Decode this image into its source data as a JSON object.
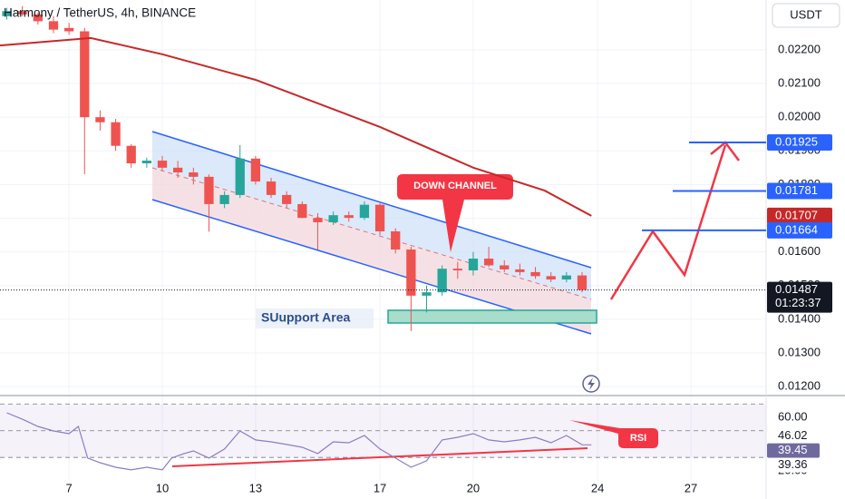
{
  "chart_data": [
    {
      "type": "candlestick",
      "title": "Harmony / TetherUS, 4h, BINANCE",
      "currency": "USDT",
      "up_color": "#26a69a",
      "down_color": "#ef5350",
      "x": [
        5.0,
        5.5,
        6.0,
        6.5,
        7.0,
        7.5,
        8.0,
        8.5,
        9.0,
        9.5,
        10.0,
        10.5,
        11.0,
        11.5,
        12.0,
        12.5,
        13.0,
        13.5,
        14.0,
        14.5,
        15.0,
        15.5,
        16.0,
        16.5,
        17.0,
        17.5,
        18.0,
        18.5,
        19.0,
        19.5,
        20.0,
        20.5,
        21.0,
        21.5,
        22.0,
        22.5,
        23.0,
        23.5
      ],
      "open": [
        0.023,
        0.02315,
        0.02305,
        0.02285,
        0.02265,
        0.02255,
        0.02,
        0.01985,
        0.01915,
        0.01863,
        0.01871,
        0.0185,
        0.01836,
        0.01823,
        0.01742,
        0.01769,
        0.01877,
        0.01809,
        0.01769,
        0.01742,
        0.01701,
        0.01688,
        0.01709,
        0.01701,
        0.0174,
        0.01661,
        0.01607,
        0.0147,
        0.0148,
        0.0155,
        0.01545,
        0.0158,
        0.0156,
        0.01548,
        0.0154,
        0.01528,
        0.01518,
        0.0153
      ],
      "high": [
        0.02325,
        0.0233,
        0.0231,
        0.023,
        0.0228,
        0.02265,
        0.0202,
        0.01995,
        0.0192,
        0.0188,
        0.01885,
        0.0187,
        0.0185,
        0.0183,
        0.0178,
        0.01917,
        0.01885,
        0.0182,
        0.0178,
        0.0175,
        0.01715,
        0.0172,
        0.0172,
        0.0175,
        0.01745,
        0.0167,
        0.01615,
        0.015,
        0.0156,
        0.0157,
        0.016,
        0.01615,
        0.01575,
        0.01565,
        0.01555,
        0.0154,
        0.0154,
        0.0154
      ],
      "low": [
        0.0229,
        0.023,
        0.02275,
        0.0225,
        0.02245,
        0.01831,
        0.0196,
        0.019,
        0.0185,
        0.0185,
        0.0184,
        0.0182,
        0.018,
        0.0166,
        0.0173,
        0.0176,
        0.018,
        0.0176,
        0.0173,
        0.017,
        0.01607,
        0.0168,
        0.0169,
        0.01695,
        0.0165,
        0.01595,
        0.01365,
        0.0142,
        0.0147,
        0.0152,
        0.0153,
        0.01555,
        0.0154,
        0.0153,
        0.0152,
        0.0151,
        0.0151,
        0.0148
      ],
      "close": [
        0.02315,
        0.02305,
        0.02285,
        0.0226,
        0.02255,
        0.02,
        0.01985,
        0.01915,
        0.01863,
        0.01871,
        0.0185,
        0.01836,
        0.01823,
        0.01742,
        0.01769,
        0.01877,
        0.01809,
        0.01769,
        0.01742,
        0.01701,
        0.01688,
        0.01709,
        0.01701,
        0.0174,
        0.01661,
        0.01607,
        0.0147,
        0.0148,
        0.0155,
        0.01545,
        0.0158,
        0.0156,
        0.01548,
        0.0154,
        0.01528,
        0.01518,
        0.0153,
        0.01487
      ],
      "ma": {
        "color": "#c62828",
        "x": [
          4.78,
          7.7,
          10.0,
          13.0,
          17.0,
          20.0,
          22.3,
          23.8
        ],
        "values": [
          0.02213,
          0.02235,
          0.02187,
          0.02111,
          0.01971,
          0.0185,
          0.01782,
          0.01707
        ]
      },
      "xlim": [
        4.78,
        29.42
      ],
      "ylim": [
        0.01176,
        0.02348
      ],
      "yticks": [
        {
          "value": 0.012,
          "label": "0.01200"
        },
        {
          "value": 0.013,
          "label": "0.01300"
        },
        {
          "value": 0.014,
          "label": "0.01400"
        },
        {
          "value": 0.015,
          "label": "0.01500"
        },
        {
          "value": 0.016,
          "label": "0.01600"
        },
        {
          "value": 0.017,
          "label": "0.01700"
        },
        {
          "value": 0.018,
          "label": "0.01800"
        },
        {
          "value": 0.019,
          "label": "0.01900"
        },
        {
          "value": 0.02,
          "label": "0.02000"
        },
        {
          "value": 0.021,
          "label": "0.02100"
        },
        {
          "value": 0.022,
          "label": "0.02200"
        }
      ],
      "grid": true,
      "price_labels": [
        {
          "value": 0.01925,
          "label": "0.01925",
          "color": "#2962ff"
        },
        {
          "value": 0.01781,
          "label": "0.01781",
          "color": "#2962ff"
        },
        {
          "value": 0.01707,
          "label": "0.01707",
          "color": "#c62828"
        },
        {
          "value": 0.01664,
          "label": "0.01664",
          "color": "#2962ff"
        },
        {
          "value": 0.01487,
          "label": "0.01487",
          "color": "#131722"
        }
      ],
      "countdown": "01:23:37",
      "annotations": [
        "DOWN CHANNEL",
        "SUupport Area"
      ]
    },
    {
      "type": "line",
      "name": "RSI",
      "color": "#8e7cc3",
      "x": [
        5.0,
        5.5,
        6.0,
        6.5,
        7.0,
        7.3,
        7.6,
        8.0,
        8.5,
        9.0,
        9.5,
        10.0,
        10.3,
        10.7,
        11.0,
        11.5,
        12.0,
        12.5,
        13.0,
        13.5,
        14.0,
        14.5,
        15.0,
        15.5,
        16.0,
        16.5,
        17.0,
        17.5,
        18.0,
        18.5,
        19.0,
        19.5,
        20.0,
        20.5,
        21.0,
        21.5,
        22.0,
        22.5,
        23.0,
        23.5,
        23.8
      ],
      "values": [
        63.4,
        58.6,
        53.2,
        49.8,
        47.8,
        53.2,
        29.5,
        26.1,
        22.7,
        20.7,
        22.7,
        20.7,
        29.5,
        32.9,
        34.9,
        29.5,
        36.3,
        49.8,
        43.1,
        41.7,
        39.7,
        37.6,
        32.9,
        41.7,
        41.0,
        46.4,
        36.3,
        29.5,
        22.7,
        27.5,
        43.1,
        45.1,
        47.8,
        43.1,
        41.7,
        43.1,
        45.1,
        41.0,
        46.4,
        39.5,
        39.45
      ],
      "xlim": [
        4.78,
        29.42
      ],
      "ylim": [
        12.5,
        75.6
      ],
      "yticks": [
        {
          "value": 60,
          "label": "60.00"
        },
        {
          "value": 20,
          "label": "20.00"
        }
      ],
      "xticks": [
        7,
        10,
        13,
        17,
        20,
        24,
        27
      ],
      "hlines": [
        70,
        50,
        30
      ],
      "value_badges": [
        {
          "value": 46.02,
          "label": "46.02",
          "color": "#ffffff",
          "text_color": "#131722"
        },
        {
          "value": 39.45,
          "label": "39.45",
          "color": "#6f6a9e",
          "text_color": "#ffffff"
        },
        {
          "value": 39.36,
          "label": "39.36",
          "color": "#ffffff",
          "text_color": "#131722"
        }
      ]
    }
  ]
}
